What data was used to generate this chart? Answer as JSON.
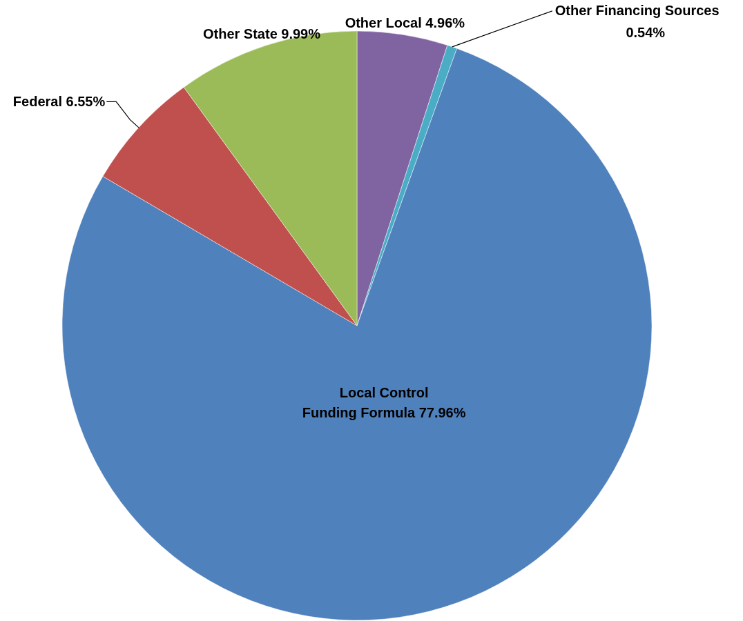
{
  "chart_data": {
    "type": "pie",
    "categories": [
      "Other Local",
      "Other Financing Sources",
      "Local Control Funding Formula",
      "Federal",
      "Other State"
    ],
    "values": [
      4.96,
      0.54,
      77.96,
      6.55,
      9.99
    ],
    "colors": [
      "#8064a2",
      "#4bacc6",
      "#4f81bd",
      "#c0504d",
      "#9bbb59"
    ],
    "data_labels": true,
    "value_labels": [
      "4.96%",
      "0.54%",
      "77.96%",
      "6.55%",
      "9.99%"
    ]
  }
}
